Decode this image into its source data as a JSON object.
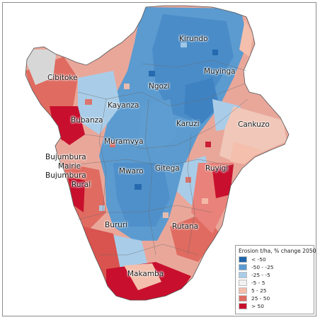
{
  "map": {
    "provinces": [
      {
        "name": "Kirundo"
      },
      {
        "name": "Muyinga"
      },
      {
        "name": "Cibitoke"
      },
      {
        "name": "Ngozi"
      },
      {
        "name": "Kayanza"
      },
      {
        "name": "Karuzi"
      },
      {
        "name": "Cankuzo"
      },
      {
        "name": "Bubanza"
      },
      {
        "name": "Muramvya"
      },
      {
        "name": "Bujumbura"
      },
      {
        "name": "Mairie"
      },
      {
        "name": "Bujumbura"
      },
      {
        "name": "Rural"
      },
      {
        "name": "Mwaro"
      },
      {
        "name": "Gitega"
      },
      {
        "name": "Ruyigi"
      },
      {
        "name": "Bururi"
      },
      {
        "name": "Rutana"
      },
      {
        "name": "Makamba"
      }
    ]
  },
  "legend": {
    "title": "Erosion t/ha, % change 2050",
    "classes": [
      {
        "label": "< -50",
        "color": "#2166ac"
      },
      {
        "label": "-50 - -25",
        "color": "#5b9bd0"
      },
      {
        "label": "-25 - -5",
        "color": "#a9cde8"
      },
      {
        "label": "-5 - 5",
        "color": "#f2f2f2"
      },
      {
        "label": "5 - 25",
        "color": "#f4bfac"
      },
      {
        "label": "25 - 50",
        "color": "#e06b60"
      },
      {
        "label": "> 50",
        "color": "#c8102e"
      }
    ]
  }
}
